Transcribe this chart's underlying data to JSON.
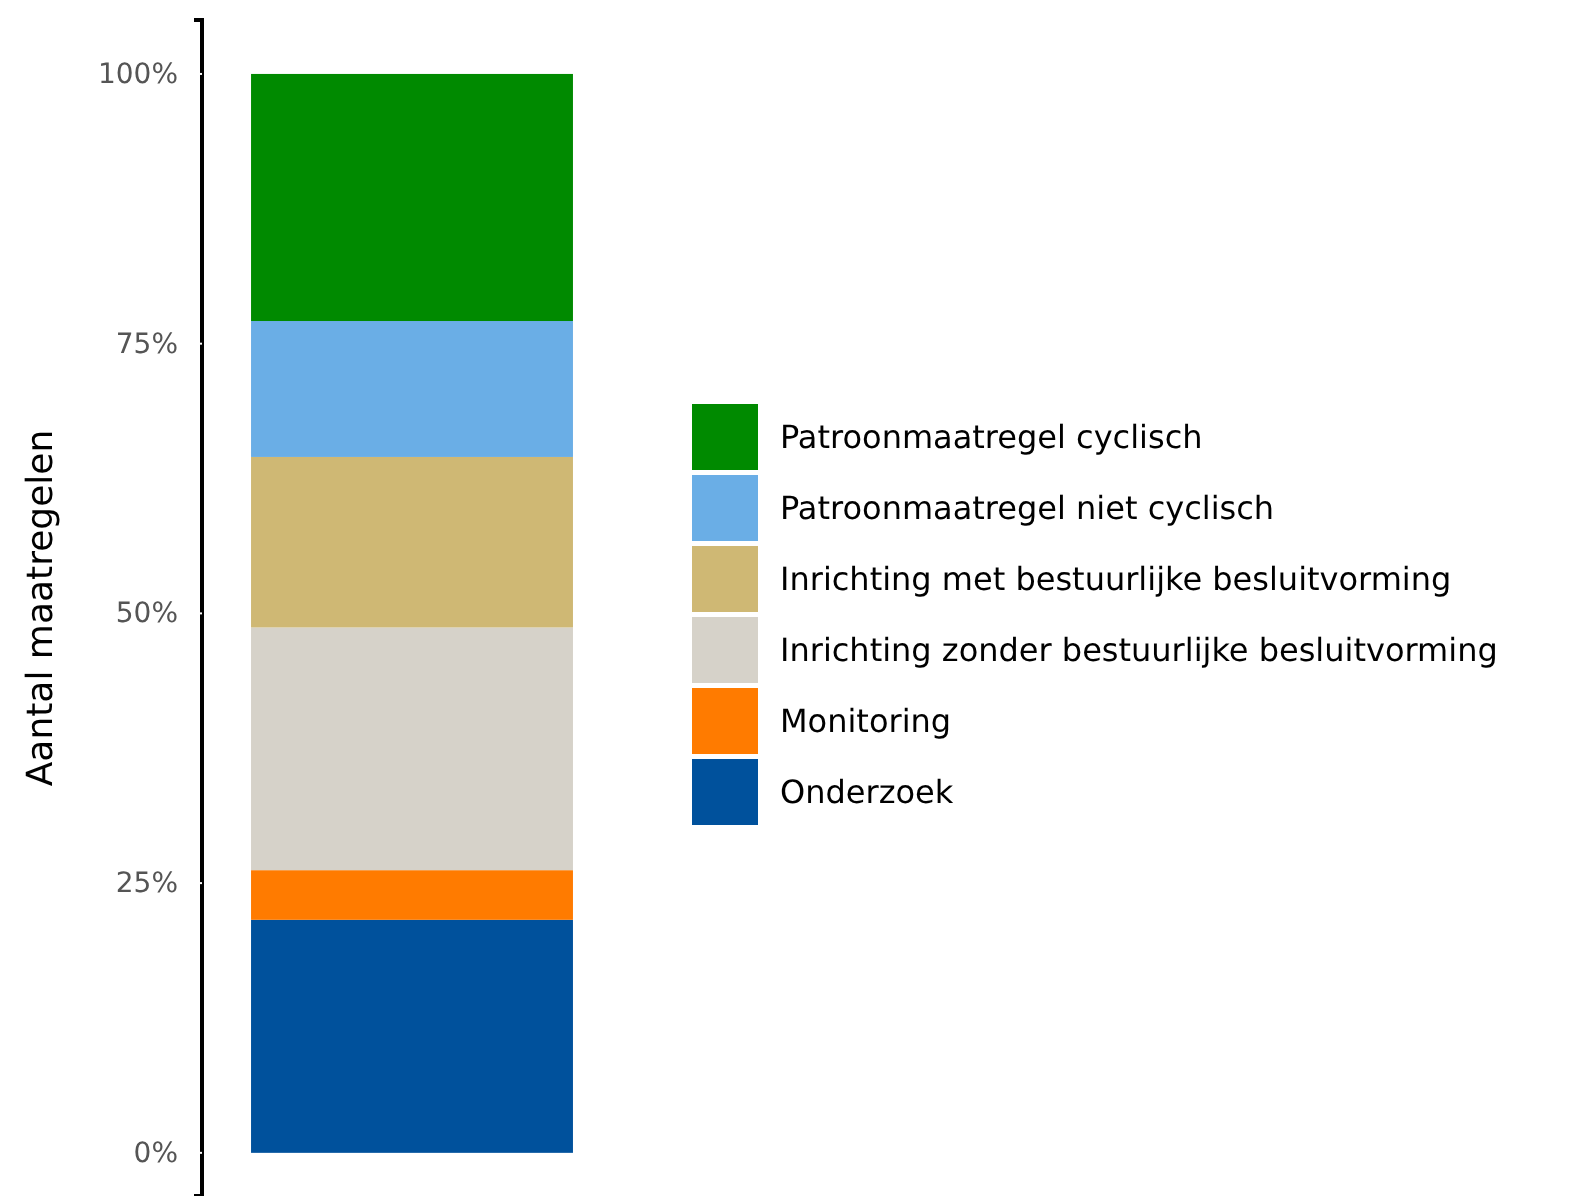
{
  "chart_data": {
    "type": "bar",
    "stacked": true,
    "ylabel": "Aantal maatregelen",
    "categories": [
      null
    ],
    "series": [
      {
        "name": "Onderzoek",
        "color": "#00519c",
        "values": [
          21.6
        ]
      },
      {
        "name": "Monitoring",
        "color": "#ff7b00",
        "values": [
          4.6
        ]
      },
      {
        "name": "Inrichting zonder bestuurlijke besluitvorming",
        "color": "#d6d2c9",
        "values": [
          22.5
        ]
      },
      {
        "name": "Inrichting met bestuurlijke besluitvorming",
        "color": "#cfb874",
        "values": [
          15.8
        ]
      },
      {
        "name": "Patroonmaatregel niet cyclisch",
        "color": "#6aaee6",
        "values": [
          12.6
        ]
      },
      {
        "name": "Patroonmaatregel cyclisch",
        "color": "#008a00",
        "values": [
          22.9
        ]
      }
    ],
    "ylim": [
      -4,
      105
    ],
    "yticks": [
      {
        "value": 0,
        "label": "0%"
      },
      {
        "value": 25,
        "label": "25%"
      },
      {
        "value": 50,
        "label": "50%"
      },
      {
        "value": 75,
        "label": "75%"
      },
      {
        "value": 100,
        "label": "100%"
      }
    ],
    "grid": false,
    "legend": "right"
  }
}
